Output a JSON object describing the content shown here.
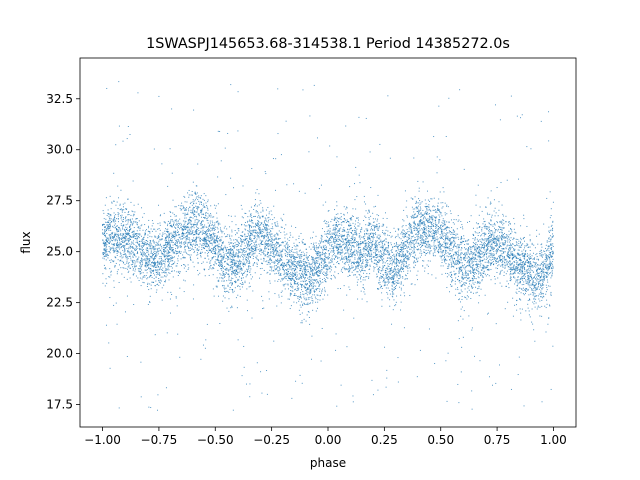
{
  "chart_data": {
    "type": "scatter",
    "title": "1SWASPJ145653.68-314538.1 Period 14385272.0s",
    "xlabel": "phase",
    "ylabel": "flux",
    "xlim": [
      -1.1,
      1.1
    ],
    "ylim": [
      16.4,
      34.5
    ],
    "grid": false,
    "marker_color": "#1f77b4",
    "x_ticks": [
      -1.0,
      -0.75,
      -0.5,
      -0.25,
      0.0,
      0.25,
      0.5,
      0.75,
      1.0
    ],
    "x_tick_labels": [
      "−1.00",
      "−0.75",
      "−0.50",
      "−0.25",
      "0.00",
      "0.25",
      "0.50",
      "0.75",
      "1.00"
    ],
    "y_ticks": [
      17.5,
      20.0,
      22.5,
      25.0,
      27.5,
      30.0,
      32.5
    ],
    "y_tick_labels": [
      "17.5",
      "20.0",
      "22.5",
      "25.0",
      "27.5",
      "30.0",
      "32.5"
    ],
    "series": [
      {
        "x": [
          -1.0,
          -0.95,
          -0.9,
          -0.85,
          -0.8,
          -0.75,
          -0.7,
          -0.65,
          -0.6,
          -0.55,
          -0.5,
          -0.45,
          -0.4,
          -0.35,
          -0.3,
          -0.25,
          -0.2,
          -0.15,
          -0.1,
          -0.05,
          0.0,
          0.05,
          0.1,
          0.15,
          0.2,
          0.25,
          0.3,
          0.35,
          0.4,
          0.45,
          0.5,
          0.55,
          0.6,
          0.65,
          0.7,
          0.75,
          0.8,
          0.85,
          0.9,
          0.95,
          1.0
        ],
        "y": [
          25.3,
          25.8,
          25.6,
          25.4,
          24.6,
          24.6,
          25.2,
          25.9,
          26.3,
          26.0,
          25.4,
          24.3,
          24.6,
          25.4,
          25.8,
          25.2,
          24.5,
          24.0,
          23.7,
          24.0,
          25.0,
          25.5,
          25.3,
          24.8,
          25.5,
          24.5,
          24.2,
          25.3,
          26.0,
          26.2,
          26.0,
          25.0,
          24.2,
          24.5,
          25.3,
          25.5,
          24.8,
          24.2,
          24.0,
          23.8,
          25.2
        ]
      }
    ]
  }
}
